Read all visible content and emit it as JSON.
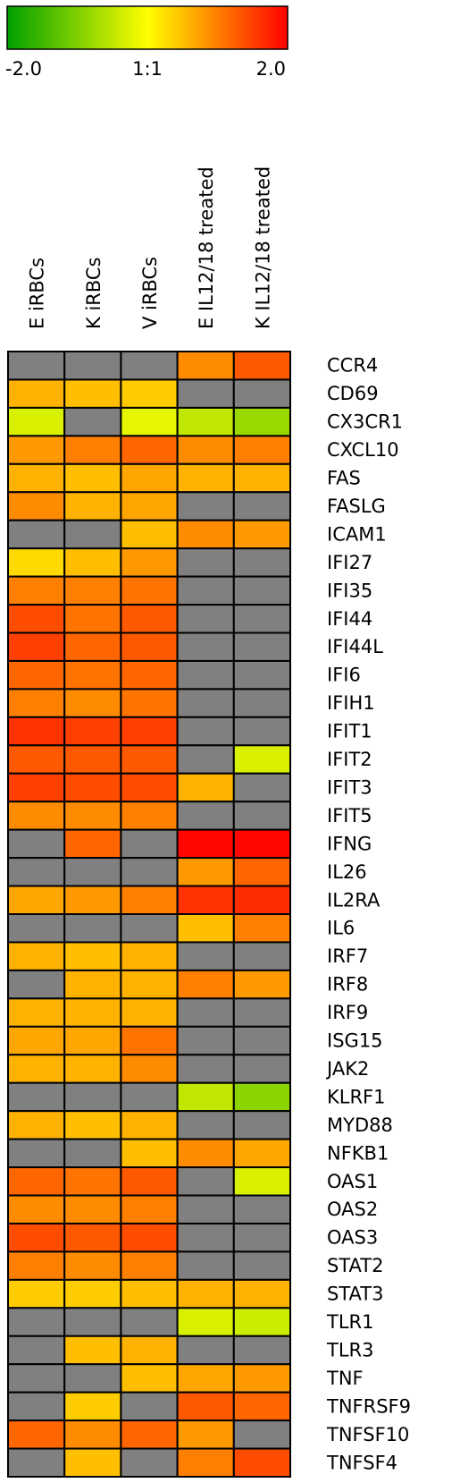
{
  "chart_data": {
    "type": "heatmap",
    "color_scale": {
      "min_label": "-2.0",
      "mid_label": "1:1",
      "max_label": "2.0",
      "min": -2.0,
      "max": 2.0,
      "colors": [
        "#00a000",
        "#ffff00",
        "#ff0000"
      ]
    },
    "missing_color": "#808080",
    "cell_border_color": "#000000",
    "columns": [
      "E iRBCs",
      "K iRBCs",
      "V iRBCs",
      "E IL12/18 treated",
      "K IL12/18 treated"
    ],
    "rows": [
      "CCR4",
      "CD69",
      "CX3CR1",
      "CXCL10",
      "FAS",
      "FASLG",
      "ICAM1",
      "IFI27",
      "IFI35",
      "IFI44",
      "IFI44L",
      "IFI6",
      "IFIH1",
      "IFIT1",
      "IFIT2",
      "IFIT3",
      "IFIT5",
      "IFNG",
      "IL26",
      "IL2RA",
      "IL6",
      "IRF7",
      "IRF8",
      "IRF9",
      "ISG15",
      "JAK2",
      "KLRF1",
      "MYD88",
      "NFKB1",
      "OAS1",
      "OAS2",
      "OAS3",
      "STAT2",
      "STAT3",
      "TLR1",
      "TLR3",
      "TNF",
      "TNFRSF9",
      "TNFSF10",
      "TNFSF4"
    ],
    "values": [
      [
        null,
        null,
        null,
        0.9,
        1.3
      ],
      [
        0.6,
        0.5,
        0.4,
        null,
        null
      ],
      [
        -0.3,
        null,
        -0.2,
        -0.5,
        -0.8
      ],
      [
        0.8,
        1.0,
        1.2,
        0.9,
        1.0
      ],
      [
        0.6,
        0.5,
        0.7,
        0.6,
        0.6
      ],
      [
        0.9,
        0.6,
        0.7,
        null,
        null
      ],
      [
        null,
        null,
        0.5,
        0.9,
        0.8
      ],
      [
        0.3,
        0.5,
        0.8,
        null,
        null
      ],
      [
        1.0,
        1.0,
        1.1,
        null,
        null
      ],
      [
        1.4,
        1.1,
        1.3,
        null,
        null
      ],
      [
        1.5,
        1.2,
        1.3,
        null,
        null
      ],
      [
        1.2,
        1.1,
        1.2,
        null,
        null
      ],
      [
        1.0,
        0.9,
        1.1,
        null,
        null
      ],
      [
        1.6,
        1.5,
        1.5,
        null,
        null
      ],
      [
        1.3,
        1.3,
        1.3,
        null,
        -0.3
      ],
      [
        1.5,
        1.4,
        1.4,
        0.6,
        null
      ],
      [
        0.9,
        0.9,
        1.0,
        null,
        null
      ],
      [
        null,
        1.2,
        null,
        1.95,
        1.95
      ],
      [
        null,
        null,
        null,
        0.8,
        1.2
      ],
      [
        0.7,
        0.8,
        1.0,
        1.6,
        1.65
      ],
      [
        null,
        null,
        null,
        0.5,
        1.0
      ],
      [
        0.6,
        0.5,
        0.6,
        null,
        null
      ],
      [
        null,
        0.6,
        0.6,
        1.0,
        0.8
      ],
      [
        0.6,
        0.6,
        0.6,
        null,
        null
      ],
      [
        0.7,
        0.7,
        1.1,
        null,
        null
      ],
      [
        0.6,
        0.6,
        0.9,
        null,
        null
      ],
      [
        null,
        null,
        null,
        -0.5,
        -0.9
      ],
      [
        0.6,
        0.5,
        0.6,
        null,
        null
      ],
      [
        null,
        null,
        0.5,
        0.9,
        0.7
      ],
      [
        1.2,
        1.1,
        1.3,
        null,
        -0.3
      ],
      [
        0.9,
        0.9,
        1.0,
        null,
        null
      ],
      [
        1.4,
        1.3,
        1.4,
        null,
        null
      ],
      [
        1.0,
        0.9,
        1.0,
        null,
        null
      ],
      [
        0.4,
        0.4,
        0.5,
        0.6,
        0.6
      ],
      [
        null,
        null,
        null,
        -0.3,
        -0.4
      ],
      [
        null,
        0.5,
        0.6,
        null,
        null
      ],
      [
        null,
        null,
        0.5,
        0.7,
        0.8
      ],
      [
        null,
        0.4,
        null,
        1.3,
        1.2
      ],
      [
        1.2,
        0.9,
        1.2,
        0.8,
        null
      ],
      [
        null,
        0.5,
        null,
        1.0,
        1.4
      ]
    ]
  }
}
